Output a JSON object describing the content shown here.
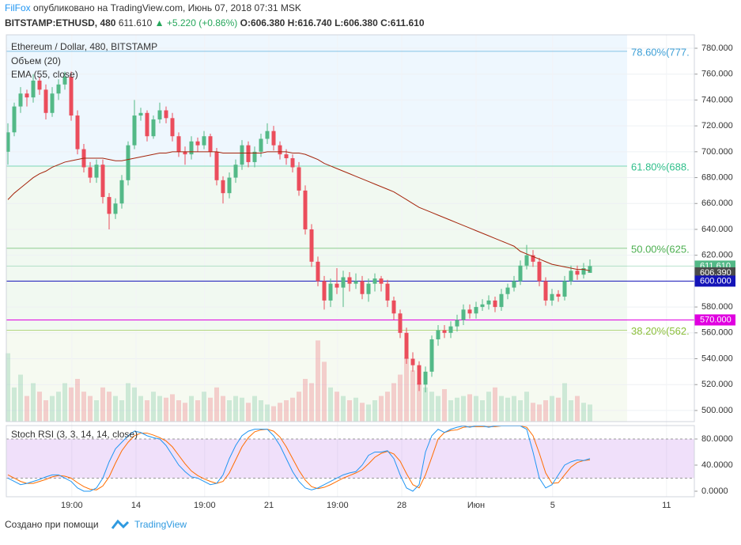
{
  "header": {
    "author": "FilFox",
    "published": "опубликовано на TradingView.com, Июнь 07, 2018 07:31 MSK",
    "symbol": "BITSTAMP:ETHUSD, 480",
    "last": "611.610",
    "change": "▲ +5.220 (+0.86%)",
    "o": "O:606.380",
    "h": "H:616.740",
    "l": "L:606.380",
    "c": "C:611.610"
  },
  "footer": {
    "created": "Создано при помощи",
    "brand": "TradingView"
  },
  "chart_data": {
    "type": "candlestick",
    "title": "Ethereum / Dollar, 480, BITSTAMP",
    "volume_label": "Объем (20)",
    "ema_label": "EMA (55, close)",
    "stoch_label": "Stoch RSI (3, 3, 14, 14, close)",
    "up_color": "#53b987",
    "down_color": "#eb4d5c",
    "ema_color": "#a5250c",
    "k_color": "#2196f3",
    "d_color": "#ff6d00",
    "xlim": [
      -0.25,
      108.5
    ],
    "ylim": [
      491.4,
      790.4
    ],
    "xticks": [
      {
        "value": 10.1,
        "label": "19:00"
      },
      {
        "value": 20.25,
        "label": "14"
      },
      {
        "value": 31.1,
        "label": "19:00"
      },
      {
        "value": 41.25,
        "label": "21"
      },
      {
        "value": 52.1,
        "label": "19:00"
      },
      {
        "value": 62.25,
        "label": "28"
      },
      {
        "value": 74,
        "label": "Июн"
      },
      {
        "value": 86.1,
        "label": "5"
      },
      {
        "value": 104.1,
        "label": "11"
      }
    ],
    "yticks": [
      {
        "value": 500,
        "label": "500.000"
      },
      {
        "value": 520,
        "label": "520.000"
      },
      {
        "value": 540,
        "label": "540.000"
      },
      {
        "value": 560,
        "label": "560.000"
      },
      {
        "value": 580,
        "label": "580.000"
      },
      {
        "value": 600,
        "label": "600.000"
      },
      {
        "value": 620,
        "label": "620.000"
      },
      {
        "value": 640,
        "label": "640.000"
      },
      {
        "value": 660,
        "label": "660.000"
      },
      {
        "value": 680,
        "label": "680.000"
      },
      {
        "value": 700,
        "label": "700.000"
      },
      {
        "value": 720,
        "label": "720.000"
      },
      {
        "value": 740,
        "label": "740.000"
      },
      {
        "value": 760,
        "label": "760.000"
      },
      {
        "value": 780,
        "label": "780.000"
      }
    ],
    "fib_levels": [
      {
        "label": "78.60%(777.",
        "value": 777.6,
        "color": "#3d9fd6"
      },
      {
        "label": "61.80%(688.",
        "value": 688.9,
        "color": "#2fbf8a"
      },
      {
        "label": "50.00%(625.",
        "value": 625.4,
        "color": "#4caf50"
      },
      {
        "label": "38.20%(562.",
        "value": 562.0,
        "color": "#8bbf3a"
      }
    ],
    "price_labels": [
      {
        "value": 611.61,
        "label": "611.610",
        "color": "#53b987",
        "line": true
      },
      {
        "value": 606.39,
        "label": "606.390",
        "color": "#4a4a4a",
        "line": false
      },
      {
        "value": 600,
        "label": "600.000",
        "color": "#1414b8",
        "line": true
      },
      {
        "value": 570,
        "label": "570.000",
        "color": "#e000e0",
        "line": true
      }
    ],
    "candles": [
      [
        700,
        722,
        690,
        715
      ],
      [
        715,
        738,
        712,
        735
      ],
      [
        735,
        750,
        730,
        745
      ],
      [
        745,
        748,
        735,
        742
      ],
      [
        742,
        760,
        738,
        755
      ],
      [
        755,
        758,
        744,
        748
      ],
      [
        748,
        752,
        725,
        730
      ],
      [
        730,
        750,
        727,
        745
      ],
      [
        745,
        756,
        740,
        752
      ],
      [
        752,
        762,
        748,
        758
      ],
      [
        758,
        762,
        724,
        728
      ],
      [
        728,
        732,
        698,
        702
      ],
      [
        702,
        706,
        684,
        688
      ],
      [
        688,
        692,
        676,
        680
      ],
      [
        680,
        694,
        676,
        690
      ],
      [
        690,
        694,
        660,
        665
      ],
      [
        665,
        668,
        640,
        652
      ],
      [
        652,
        664,
        648,
        660
      ],
      [
        660,
        682,
        656,
        678
      ],
      [
        678,
        708,
        674,
        705
      ],
      [
        705,
        740,
        702,
        728
      ],
      [
        728,
        734,
        724,
        730
      ],
      [
        730,
        732,
        708,
        712
      ],
      [
        712,
        728,
        710,
        725
      ],
      [
        725,
        738,
        722,
        732
      ],
      [
        732,
        735,
        722,
        726
      ],
      [
        726,
        730,
        708,
        712
      ],
      [
        712,
        715,
        696,
        700
      ],
      [
        700,
        704,
        690,
        698
      ],
      [
        698,
        712,
        694,
        708
      ],
      [
        708,
        711,
        700,
        705
      ],
      [
        705,
        716,
        702,
        712
      ],
      [
        712,
        714,
        696,
        700
      ],
      [
        700,
        703,
        674,
        678
      ],
      [
        678,
        681,
        660,
        668
      ],
      [
        668,
        684,
        664,
        680
      ],
      [
        680,
        694,
        676,
        690
      ],
      [
        690,
        709,
        686,
        705
      ],
      [
        705,
        708,
        688,
        692
      ],
      [
        692,
        704,
        688,
        700
      ],
      [
        700,
        714,
        696,
        710
      ],
      [
        710,
        722,
        706,
        716
      ],
      [
        716,
        720,
        701,
        705
      ],
      [
        705,
        708,
        694,
        698
      ],
      [
        698,
        702,
        690,
        695
      ],
      [
        695,
        698,
        684,
        688
      ],
      [
        688,
        692,
        666,
        670
      ],
      [
        670,
        674,
        636,
        640
      ],
      [
        640,
        644,
        611,
        615
      ],
      [
        615,
        619,
        596,
        600
      ],
      [
        600,
        604,
        578,
        585
      ],
      [
        585,
        602,
        580,
        598
      ],
      [
        598,
        610,
        590,
        595
      ],
      [
        595,
        608,
        580,
        603
      ],
      [
        603,
        607,
        592,
        598
      ],
      [
        598,
        606,
        594,
        600
      ],
      [
        600,
        604,
        586,
        590
      ],
      [
        590,
        602,
        584,
        598
      ],
      [
        598,
        606,
        592,
        602
      ],
      [
        602,
        604,
        592,
        598
      ],
      [
        598,
        601,
        580,
        585
      ],
      [
        585,
        588,
        570,
        575
      ],
      [
        575,
        578,
        556,
        560
      ],
      [
        560,
        564,
        536,
        540
      ],
      [
        540,
        545,
        530,
        535
      ],
      [
        535,
        538,
        515,
        520
      ],
      [
        520,
        534,
        514,
        530
      ],
      [
        530,
        558,
        526,
        555
      ],
      [
        555,
        566,
        550,
        562
      ],
      [
        562,
        566,
        556,
        560
      ],
      [
        560,
        569,
        556,
        565
      ],
      [
        565,
        574,
        561,
        570
      ],
      [
        570,
        582,
        566,
        578
      ],
      [
        578,
        582,
        571,
        575
      ],
      [
        575,
        584,
        571,
        580
      ],
      [
        580,
        586,
        577,
        582
      ],
      [
        582,
        589,
        578,
        585
      ],
      [
        585,
        588,
        576,
        580
      ],
      [
        580,
        594,
        577,
        590
      ],
      [
        590,
        598,
        586,
        595
      ],
      [
        595,
        604,
        592,
        600
      ],
      [
        600,
        616,
        597,
        612
      ],
      [
        612,
        628,
        609,
        620
      ],
      [
        620,
        624,
        611,
        615
      ],
      [
        615,
        618,
        596,
        600
      ],
      [
        600,
        603,
        581,
        585
      ],
      [
        585,
        594,
        581,
        590
      ],
      [
        590,
        593,
        584,
        588
      ],
      [
        588,
        604,
        585,
        600
      ],
      [
        600,
        612,
        597,
        608
      ],
      [
        608,
        612,
        601,
        605
      ],
      [
        605,
        614,
        602,
        610
      ],
      [
        606.38,
        616.74,
        606.38,
        611.61
      ]
    ],
    "ema": [
      663,
      668,
      672,
      676,
      680,
      683,
      685,
      688,
      690,
      692,
      693,
      694,
      695,
      695,
      695,
      695,
      694,
      693,
      693,
      694,
      695,
      696,
      697,
      698,
      699,
      699,
      700,
      700,
      700,
      700,
      700,
      700,
      700,
      700,
      699,
      699,
      699,
      699,
      699,
      699,
      699,
      700,
      700,
      700,
      700,
      699,
      699,
      698,
      696,
      694,
      691,
      689,
      687,
      685,
      683,
      681,
      679,
      677,
      675,
      673,
      671,
      669,
      666,
      663,
      660,
      657,
      655,
      653,
      651,
      649,
      647,
      645,
      643,
      641,
      639,
      637,
      635,
      633,
      631,
      629,
      627,
      623,
      621,
      619,
      617,
      615,
      613,
      612,
      611,
      610,
      609,
      609,
      608
    ],
    "volume_lim": [
      0,
      100
    ],
    "volume": [
      80,
      40,
      55,
      30,
      45,
      35,
      25,
      30,
      35,
      45,
      40,
      50,
      35,
      30,
      25,
      40,
      35,
      30,
      25,
      45,
      40,
      30,
      25,
      35,
      30,
      28,
      32,
      25,
      22,
      30,
      25,
      35,
      28,
      40,
      30,
      25,
      30,
      28,
      22,
      30,
      25,
      20,
      18,
      22,
      25,
      28,
      35,
      50,
      45,
      95,
      70,
      40,
      35,
      30,
      25,
      28,
      22,
      20,
      25,
      30,
      35,
      45,
      55,
      75,
      60,
      45,
      40,
      35,
      30,
      38,
      25,
      28,
      30,
      32,
      30,
      25,
      35,
      40,
      30,
      28,
      30,
      25,
      35,
      22,
      20,
      25,
      30,
      28,
      45,
      25,
      30,
      22,
      20
    ],
    "stoch_lim": [
      -8.5,
      100.6
    ],
    "stoch_ticks": [
      {
        "value": 80,
        "label": "80.0000"
      },
      {
        "value": 40,
        "label": "40.0000"
      },
      {
        "value": 0,
        "label": "0.0000"
      }
    ],
    "stoch_bands": [
      20,
      80
    ],
    "stoch_k": [
      20,
      15,
      10,
      12,
      15,
      18,
      22,
      25,
      25,
      20,
      15,
      5,
      0,
      0,
      5,
      20,
      45,
      65,
      75,
      85,
      92,
      90,
      85,
      82,
      80,
      70,
      55,
      40,
      30,
      22,
      20,
      15,
      10,
      12,
      25,
      50,
      70,
      85,
      92,
      95,
      95,
      95,
      85,
      70,
      50,
      30,
      15,
      5,
      2,
      5,
      10,
      15,
      20,
      25,
      28,
      30,
      40,
      55,
      60,
      60,
      62,
      50,
      25,
      5,
      0,
      10,
      60,
      85,
      95,
      90,
      95,
      98,
      100,
      98,
      100,
      100,
      98,
      100,
      100,
      100,
      100,
      100,
      95,
      60,
      20,
      5,
      10,
      25,
      40,
      45,
      48,
      47,
      50
    ],
    "stoch_d": [
      25,
      20,
      15,
      12,
      12,
      15,
      18,
      22,
      24,
      23,
      20,
      13,
      7,
      3,
      2,
      8,
      22,
      43,
      62,
      75,
      85,
      89,
      89,
      86,
      82,
      77,
      68,
      55,
      42,
      31,
      24,
      19,
      15,
      12,
      15,
      28,
      48,
      68,
      82,
      91,
      94,
      95,
      92,
      83,
      68,
      50,
      32,
      17,
      7,
      4,
      6,
      10,
      15,
      20,
      24,
      28,
      33,
      42,
      52,
      58,
      61,
      57,
      46,
      27,
      10,
      5,
      25,
      52,
      80,
      90,
      93,
      94,
      98,
      99,
      99,
      99,
      99,
      99,
      100,
      100,
      100,
      100,
      98,
      85,
      58,
      28,
      12,
      13,
      25,
      37,
      44,
      47,
      48
    ]
  }
}
